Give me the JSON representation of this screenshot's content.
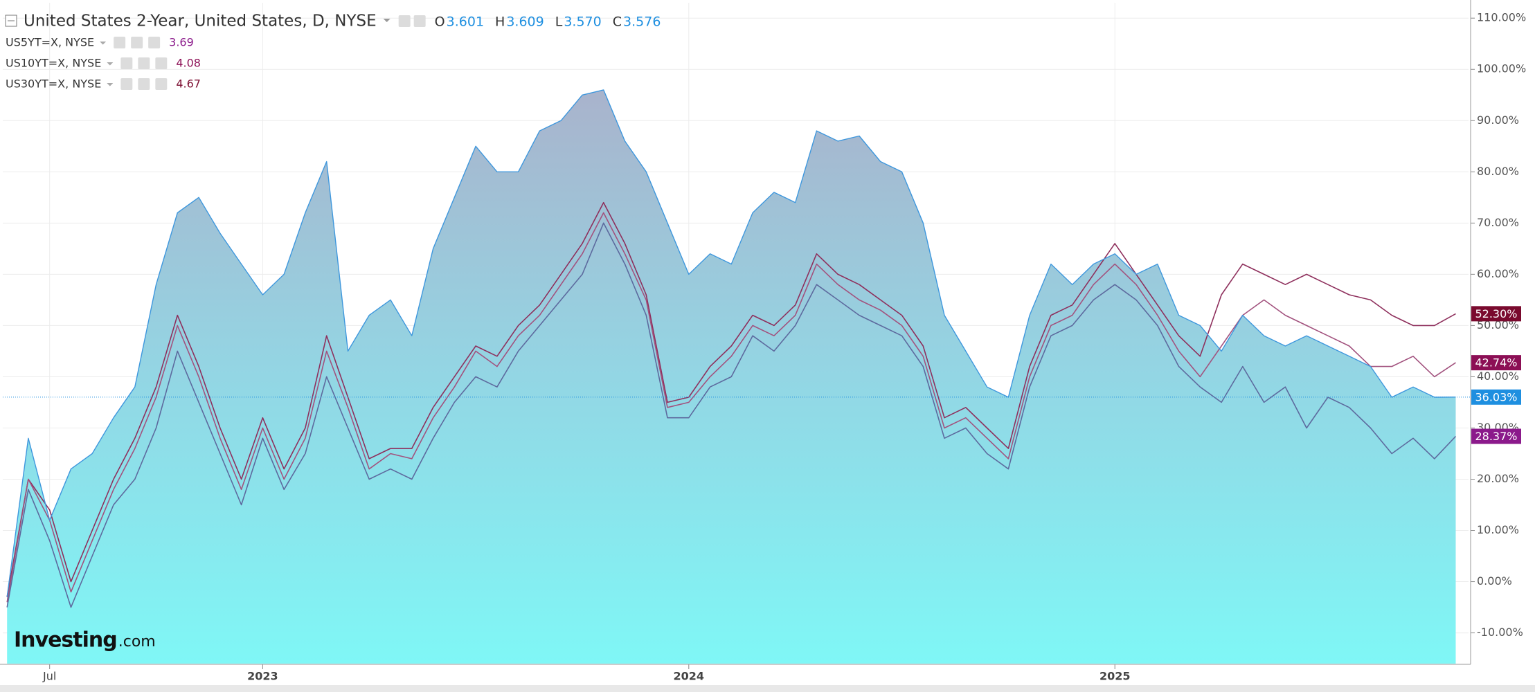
{
  "chart_data": {
    "type": "line",
    "ohlc": [
      {
        "label": "O",
        "value": "3.601"
      },
      {
        "label": "H",
        "value": "3.609"
      },
      {
        "label": "L",
        "value": "3.570"
      },
      {
        "label": "C",
        "value": "3.576"
      }
    ],
    "x": [
      2022.4,
      2022.45,
      2022.5,
      2022.55,
      2022.6,
      2022.65,
      2022.7,
      2022.75,
      2022.8,
      2022.85,
      2022.9,
      2022.95,
      2023.0,
      2023.05,
      2023.1,
      2023.15,
      2023.2,
      2023.25,
      2023.3,
      2023.35,
      2023.4,
      2023.45,
      2023.5,
      2023.55,
      2023.6,
      2023.65,
      2023.7,
      2023.75,
      2023.8,
      2023.85,
      2023.9,
      2023.95,
      2024.0,
      2024.05,
      2024.1,
      2024.15,
      2024.2,
      2024.25,
      2024.3,
      2024.35,
      2024.4,
      2024.45,
      2024.5,
      2024.55,
      2024.6,
      2024.65,
      2024.7,
      2024.75,
      2024.8,
      2024.85,
      2024.9,
      2024.95,
      2025.0,
      2025.05,
      2025.1,
      2025.15,
      2025.2,
      2025.25,
      2025.3,
      2025.35,
      2025.4,
      2025.45,
      2025.5,
      2025.55,
      2025.6,
      2025.65,
      2025.7,
      2025.75,
      2025.8
    ],
    "series": [
      {
        "name": "United States 2-Year, United States, D, NYSE",
        "color": "#3e97dd",
        "label_color": "#1e8fe0",
        "value_label": "36.03%",
        "values": [
          -3,
          28,
          12,
          22,
          25,
          32,
          38,
          58,
          72,
          75,
          68,
          62,
          56,
          60,
          72,
          82,
          45,
          52,
          55,
          48,
          65,
          75,
          85,
          80,
          80,
          88,
          90,
          95,
          96,
          86,
          80,
          70,
          60,
          64,
          62,
          72,
          76,
          74,
          88,
          86,
          87,
          82,
          80,
          70,
          52,
          45,
          38,
          36,
          52,
          62,
          58,
          62,
          64,
          60,
          62,
          52,
          50,
          45,
          52,
          48,
          46,
          48,
          46,
          44,
          42,
          36,
          38,
          36,
          36.03
        ]
      },
      {
        "name": "US5YT=X, NYSE",
        "last_price": "3.69",
        "color": "#5d6a9e",
        "label_color": "#8b1a8b",
        "value_label": "28.37%",
        "values": [
          -5,
          18,
          8,
          -5,
          5,
          15,
          20,
          30,
          45,
          35,
          25,
          15,
          28,
          18,
          25,
          40,
          30,
          20,
          22,
          20,
          28,
          35,
          40,
          38,
          45,
          50,
          55,
          60,
          70,
          62,
          52,
          32,
          32,
          38,
          40,
          48,
          45,
          50,
          58,
          55,
          52,
          50,
          48,
          42,
          28,
          30,
          25,
          22,
          38,
          48,
          50,
          55,
          58,
          55,
          50,
          42,
          38,
          35,
          42,
          35,
          38,
          30,
          36,
          34,
          30,
          25,
          28,
          24,
          28.37
        ]
      },
      {
        "name": "US10YT=X, NYSE",
        "last_price": "4.08",
        "color": "#a2527e",
        "label_color": "#8c0f55",
        "value_label": "42.74%",
        "values": [
          -4,
          20,
          12,
          -2,
          8,
          18,
          26,
          36,
          50,
          40,
          28,
          18,
          30,
          20,
          28,
          45,
          34,
          22,
          25,
          24,
          32,
          38,
          45,
          42,
          48,
          52,
          58,
          64,
          72,
          64,
          55,
          34,
          35,
          40,
          44,
          50,
          48,
          52,
          62,
          58,
          55,
          53,
          50,
          44,
          30,
          32,
          28,
          24,
          40,
          50,
          52,
          58,
          62,
          58,
          52,
          45,
          40,
          46,
          52,
          55,
          52,
          50,
          48,
          46,
          42,
          42,
          44,
          40,
          42.74
        ]
      },
      {
        "name": "US30YT=X, NYSE",
        "last_price": "4.67",
        "color": "#8e2f5c",
        "label_color": "#7a0a2e",
        "value_label": "52.30%",
        "values": [
          -3,
          20,
          14,
          0,
          10,
          20,
          28,
          38,
          52,
          42,
          30,
          20,
          32,
          22,
          30,
          48,
          36,
          24,
          26,
          26,
          34,
          40,
          46,
          44,
          50,
          54,
          60,
          66,
          74,
          66,
          56,
          35,
          36,
          42,
          46,
          52,
          50,
          54,
          64,
          60,
          58,
          55,
          52,
          46,
          32,
          34,
          30,
          26,
          42,
          52,
          54,
          60,
          66,
          60,
          54,
          48,
          44,
          56,
          62,
          60,
          58,
          60,
          58,
          56,
          55,
          52,
          50,
          50,
          52.3
        ]
      }
    ],
    "xlim": [
      2022.39,
      2025.83
    ],
    "xticks": [
      {
        "value": 2022.5,
        "label": "Jul"
      },
      {
        "value": 2023,
        "label": "2023"
      },
      {
        "value": 2024,
        "label": "2024"
      },
      {
        "value": 2025,
        "label": "2025"
      }
    ],
    "ylim": [
      -16,
      113
    ],
    "yticks": [
      {
        "value": -10,
        "label": "-10.00%"
      },
      {
        "value": 0,
        "label": "0.00%"
      },
      {
        "value": 10,
        "label": "10.00%"
      },
      {
        "value": 20,
        "label": "20.00%"
      },
      {
        "value": 30,
        "label": "30.00%"
      },
      {
        "value": 40,
        "label": "40.00%"
      },
      {
        "value": 50,
        "label": "50.00%"
      },
      {
        "value": 60,
        "label": "60.00%"
      },
      {
        "value": 70,
        "label": "70.00%"
      },
      {
        "value": 80,
        "label": "80.00%"
      },
      {
        "value": 90,
        "label": "90.00%"
      },
      {
        "value": 100,
        "label": "100.00%"
      },
      {
        "value": 110,
        "label": "110.00%"
      }
    ],
    "grid": true,
    "area_series": 0,
    "watermark": "Investing",
    "watermark_suffix": ".com"
  }
}
